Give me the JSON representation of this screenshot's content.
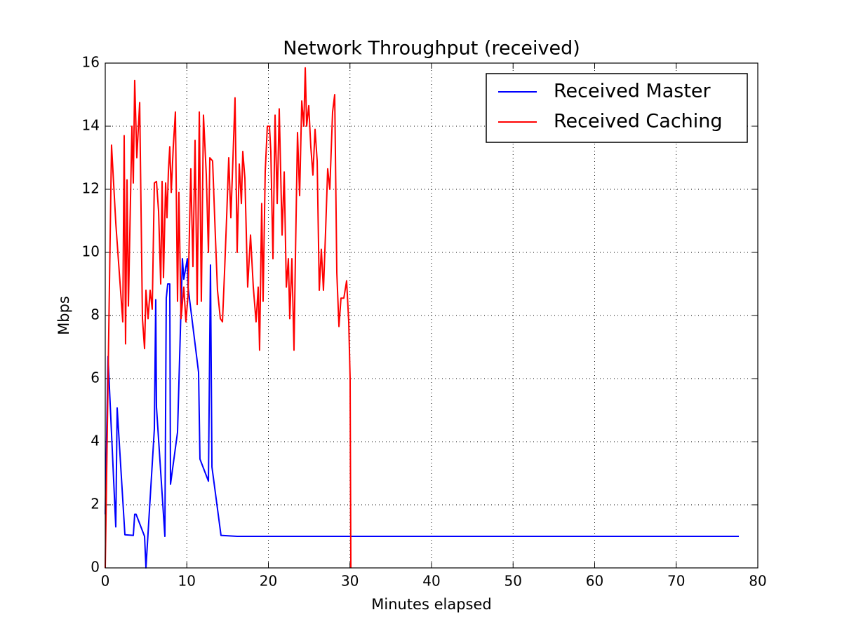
{
  "chart_data": {
    "type": "line",
    "title": "Network Throughput (received)",
    "x_label": "Minutes elapsed",
    "y_label": "Mbps",
    "xlim": [
      0,
      80
    ],
    "xticks": [
      0,
      10,
      20,
      30,
      40,
      50,
      60,
      70,
      80
    ],
    "ylim": [
      0,
      16
    ],
    "yticks": [
      0,
      2,
      4,
      6,
      8,
      10,
      12,
      14,
      16
    ],
    "grid": true,
    "legend": "upper right",
    "series": [
      {
        "name": "Received Master",
        "color": "#0000ff",
        "x": [
          0,
          0.34,
          1.29,
          1.46,
          2.41,
          3.44,
          3.61,
          3.78,
          4.82,
          4.99,
          6.02,
          6.19,
          6.28,
          7.31,
          7.48,
          7.66,
          7.91,
          8.0,
          8.86,
          9.46,
          9.63,
          10.06,
          10.15,
          11.44,
          11.61,
          12.65,
          12.9,
          13.08,
          14.19,
          16.17,
          77.68
        ],
        "values": [
          1.7,
          6.7,
          1.3,
          5.07,
          1.05,
          1.03,
          1.7,
          1.7,
          1.0,
          0,
          4.4,
          8.5,
          5.1,
          1.0,
          8.55,
          9.0,
          9.0,
          2.65,
          4.3,
          9.8,
          9.15,
          9.8,
          8.9,
          6.2,
          3.45,
          2.75,
          9.6,
          3.2,
          1.03,
          1.0,
          1.0
        ]
      },
      {
        "name": "Received Caching",
        "color": "#ff0000",
        "x": [
          0,
          0.77,
          1.3,
          2.15,
          2.32,
          2.49,
          2.67,
          2.84,
          3.27,
          3.44,
          3.61,
          3.87,
          4.22,
          4.56,
          4.82,
          4.99,
          5.25,
          5.5,
          5.76,
          6.02,
          6.28,
          6.54,
          6.8,
          6.97,
          7.14,
          7.4,
          7.57,
          7.74,
          7.91,
          8.09,
          8.34,
          8.6,
          8.86,
          9.03,
          9.29,
          9.63,
          9.89,
          10.15,
          10.49,
          10.75,
          11.01,
          11.27,
          11.53,
          11.78,
          12.04,
          12.39,
          12.65,
          12.82,
          13.16,
          13.51,
          13.76,
          14.11,
          14.37,
          14.62,
          14.88,
          15.14,
          15.4,
          15.66,
          15.91,
          16.17,
          16.43,
          16.69,
          16.86,
          17.12,
          17.46,
          17.81,
          18.15,
          18.49,
          18.75,
          18.92,
          19.18,
          19.35,
          19.61,
          19.87,
          20.13,
          20.3,
          20.56,
          20.82,
          21.08,
          21.33,
          21.68,
          21.94,
          22.2,
          22.45,
          22.62,
          22.88,
          23.14,
          23.31,
          23.57,
          23.83,
          24.09,
          24.34,
          24.52,
          24.69,
          24.95,
          25.2,
          25.46,
          25.72,
          25.98,
          26.24,
          26.49,
          26.75,
          27.01,
          27.27,
          27.53,
          27.87,
          28.13,
          28.39,
          28.65,
          28.9,
          29.25,
          29.59,
          29.85,
          30.02,
          30.11
        ],
        "values": [
          0,
          13.4,
          10.9,
          7.8,
          13.7,
          7.1,
          12.3,
          8.3,
          14.0,
          12.2,
          15.45,
          13.0,
          14.75,
          7.9,
          6.95,
          8.8,
          7.9,
          8.8,
          8.2,
          12.2,
          12.25,
          11.3,
          9.0,
          12.25,
          9.2,
          12.2,
          11.1,
          12.55,
          13.35,
          11.9,
          13.35,
          14.45,
          8.45,
          11.9,
          7.9,
          8.9,
          7.8,
          8.65,
          12.65,
          9.55,
          13.55,
          8.35,
          14.45,
          8.45,
          14.35,
          12.45,
          10.0,
          13.0,
          12.9,
          10.45,
          8.8,
          7.9,
          7.8,
          9.35,
          11.1,
          13.0,
          11.1,
          13.0,
          14.9,
          10.0,
          12.8,
          11.55,
          13.2,
          12.35,
          8.9,
          10.55,
          8.9,
          7.8,
          8.9,
          6.9,
          11.55,
          8.45,
          12.55,
          14.0,
          14.0,
          13.2,
          9.8,
          14.35,
          11.55,
          14.55,
          10.55,
          12.55,
          8.9,
          9.8,
          7.9,
          9.8,
          6.9,
          9.8,
          13.8,
          11.8,
          14.8,
          14.0,
          15.85,
          14.0,
          14.65,
          13.35,
          12.45,
          13.9,
          12.9,
          8.8,
          10.1,
          8.8,
          10.65,
          12.65,
          12.0,
          14.45,
          15.0,
          9.35,
          7.65,
          8.55,
          8.55,
          9.1,
          7.8,
          6.0,
          0
        ]
      }
    ]
  }
}
